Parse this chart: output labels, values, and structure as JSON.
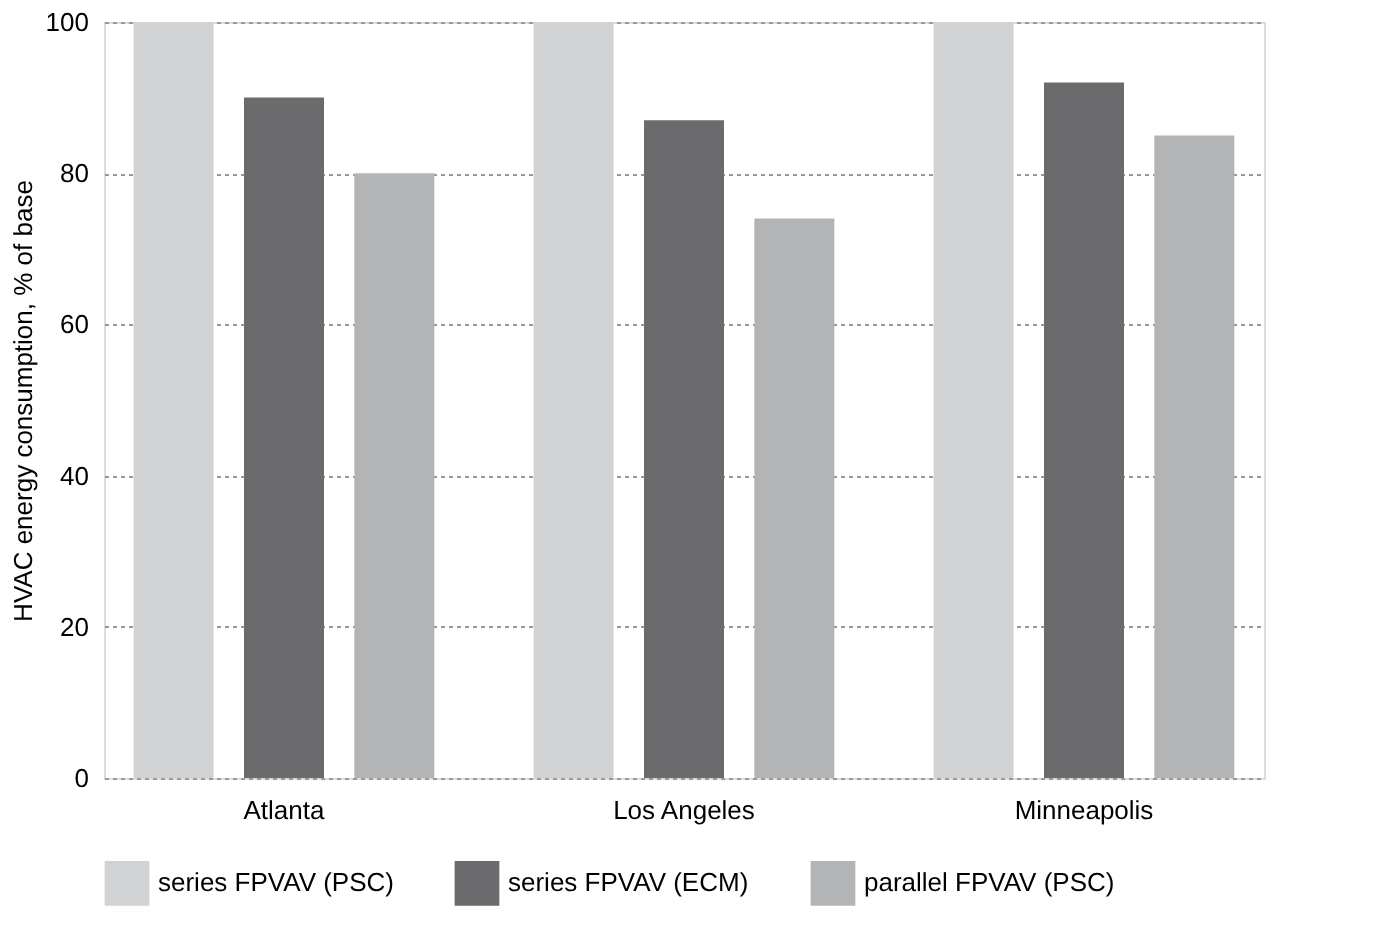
{
  "chart_data": {
    "type": "bar",
    "ylabel": "HVAC energy consumption, % of base",
    "categories": [
      "Atlanta",
      "Los Angeles",
      "Minneapolis"
    ],
    "series": [
      {
        "name": "series FPVAV (PSC)",
        "color": "#d1d2d4",
        "values": [
          100,
          100,
          100
        ]
      },
      {
        "name": "series FPVAV (ECM)",
        "color": "#6b6b6d",
        "values": [
          90,
          87,
          92
        ]
      },
      {
        "name": "parallel FPVAV (PSC)",
        "color": "#b3b4b6",
        "values": [
          80,
          74,
          85
        ]
      }
    ],
    "ylim": [
      0,
      100
    ],
    "yticks": [
      0,
      20,
      40,
      60,
      80,
      100
    ],
    "grid": "y",
    "legend": "bottom"
  }
}
